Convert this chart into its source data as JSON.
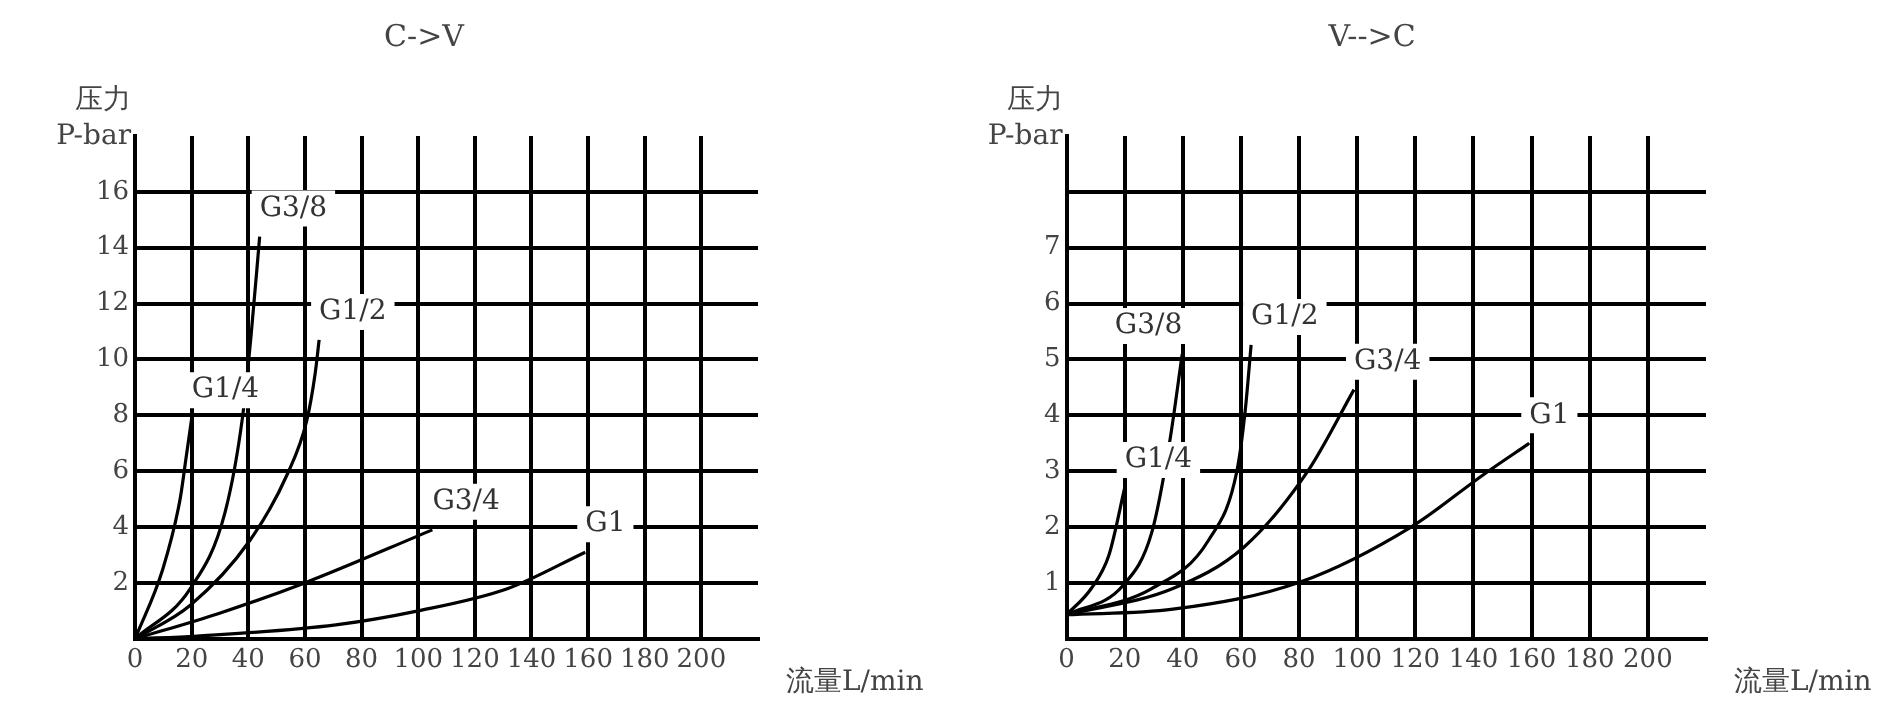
{
  "chart_data": [
    {
      "type": "line",
      "title": "C->V",
      "xlabel": "流量L/min",
      "ylabel": "压力\nP-bar",
      "xlim": [
        0,
        220
      ],
      "xticks": [
        0,
        20,
        40,
        60,
        80,
        100,
        120,
        140,
        160,
        180,
        200
      ],
      "ylim": [
        0,
        18
      ],
      "yticks": [
        2,
        4,
        6,
        8,
        10,
        12,
        14,
        16
      ],
      "grid": true,
      "legend": false,
      "marker": "none",
      "line_style": "solid",
      "series": [
        {
          "name": "G1/4",
          "color": "#000000",
          "x": [
            0,
            9.8,
            15.9,
            17.9,
            20
          ],
          "values": [
            0,
            2.5,
            5.0,
            6.4,
            7.9
          ]
        },
        {
          "name": "G3/8",
          "color": "#000000",
          "x": [
            0,
            19.5,
            31.7,
            37.9,
            41,
            44
          ],
          "values": [
            0,
            1.8,
            4.5,
            7.9,
            10.9,
            14.4
          ]
        },
        {
          "name": "G1/2",
          "color": "#000000",
          "x": [
            0,
            19.5,
            40.4,
            53.8,
            60.6,
            63.6,
            65
          ],
          "values": [
            0,
            1.2,
            3.5,
            5.9,
            7.8,
            9.5,
            10.7
          ]
        },
        {
          "name": "G3/4",
          "color": "#000000",
          "x": [
            0,
            29.3,
            59.9,
            105
          ],
          "values": [
            0,
            0.9,
            2.0,
            3.9
          ]
        },
        {
          "name": "G1",
          "color": "#000000",
          "x": [
            0,
            22,
            70.9,
            100,
            131.7,
            159
          ],
          "values": [
            0,
            0.1,
            0.5,
            1.0,
            1.8,
            3.1
          ]
        }
      ]
    },
    {
      "type": "line",
      "title": "V-->C",
      "xlabel": "流量L/min",
      "ylabel": "压力\nP-bar",
      "xlim": [
        0,
        220
      ],
      "xticks": [
        0,
        20,
        40,
        60,
        80,
        100,
        120,
        140,
        160,
        180,
        200
      ],
      "ylim": [
        0,
        9
      ],
      "yticks": [
        1,
        2,
        3,
        4,
        5,
        6,
        7,
        {
          "value": 8,
          "label": null
        }
      ],
      "grid": true,
      "legend": false,
      "marker": "none",
      "line_style": "solid",
      "series": [
        {
          "name": "G1/4",
          "color": "#000000",
          "x": [
            0,
            8.5,
            14.6,
            20
          ],
          "values": [
            0.43,
            0.9,
            1.5,
            2.7
          ]
        },
        {
          "name": "G3/8",
          "color": "#000000",
          "x": [
            0,
            19.5,
            29.3,
            35.4,
            39.8
          ],
          "values": [
            0.43,
            0.96,
            1.9,
            3.5,
            5.1
          ]
        },
        {
          "name": "G1/2",
          "color": "#000000",
          "x": [
            0,
            29.3,
            48.8,
            58.6,
            61.5,
            63.5
          ],
          "values": [
            0.43,
            0.9,
            1.76,
            3.0,
            4.1,
            5.26
          ]
        },
        {
          "name": "G3/4",
          "color": "#000000",
          "x": [
            0,
            36.6,
            61,
            83,
            98.9
          ],
          "values": [
            0.43,
            0.9,
            1.64,
            3.0,
            4.46
          ]
        },
        {
          "name": "G1",
          "color": "#000000",
          "x": [
            0,
            36.6,
            80.6,
            118.5,
            144,
            159.2
          ],
          "values": [
            0.43,
            0.53,
            1.02,
            2.0,
            2.96,
            3.5
          ]
        }
      ]
    }
  ]
}
